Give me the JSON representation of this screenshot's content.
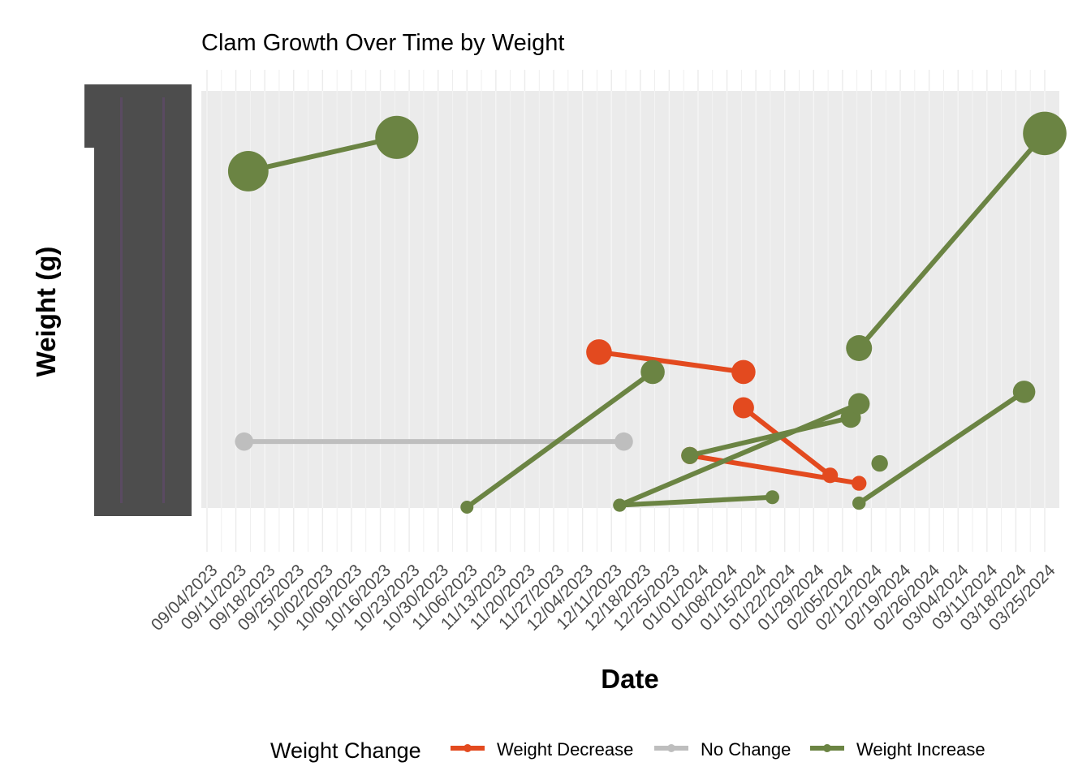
{
  "chart_data": {
    "type": "line",
    "title": "Clam Growth Over Time by Weight",
    "xlabel": "Date",
    "ylabel": "Weight (g)",
    "xlim": [
      "2023-09-04",
      "2024-03-25"
    ],
    "ylim": [
      0,
      100
    ],
    "x_ticks": [
      "09/04/2023",
      "09/11/2023",
      "09/18/2023",
      "09/25/2023",
      "10/02/2023",
      "10/09/2023",
      "10/16/2023",
      "10/23/2023",
      "10/30/2023",
      "11/06/2023",
      "11/13/2023",
      "11/20/2023",
      "11/27/2023",
      "12/04/2023",
      "12/11/2023",
      "12/18/2023",
      "12/25/2023",
      "01/01/2024",
      "01/08/2024",
      "01/15/2024",
      "01/22/2024",
      "01/29/2024",
      "02/05/2024",
      "02/12/2024",
      "02/19/2024",
      "02/26/2024",
      "03/04/2024",
      "03/11/2024",
      "03/18/2024",
      "03/25/2024"
    ],
    "grid": true,
    "legend": {
      "title": "Weight Change",
      "placement": "bottom",
      "entries": [
        {
          "label": "Weight Decrease",
          "color": "#E34A1F"
        },
        {
          "label": "No Change",
          "color": "#BEBEBE"
        },
        {
          "label": "Weight Increase",
          "color": "#6B8443"
        }
      ]
    },
    "series": [
      {
        "category": "Weight Increase",
        "points": [
          {
            "x": "2023-09-14",
            "y": 84.5
          },
          {
            "x": "2023-10-20",
            "y": 93.0
          }
        ]
      },
      {
        "category": "No Change",
        "points": [
          {
            "x": "2023-09-13",
            "y": 16.5
          },
          {
            "x": "2023-12-14",
            "y": 16.5
          }
        ]
      },
      {
        "category": "Weight Increase",
        "points": [
          {
            "x": "2023-11-06",
            "y": 0.0
          },
          {
            "x": "2023-12-21",
            "y": 34.0
          }
        ]
      },
      {
        "category": "Weight Decrease",
        "points": [
          {
            "x": "2023-12-08",
            "y": 39.0
          },
          {
            "x": "2024-01-12",
            "y": 34.0
          }
        ]
      },
      {
        "category": "Weight Decrease",
        "points": [
          {
            "x": "2023-12-30",
            "y": 13.0
          },
          {
            "x": "2024-02-09",
            "y": 6.0
          }
        ]
      },
      {
        "category": "Weight Decrease",
        "points": [
          {
            "x": "2024-01-12",
            "y": 25.0
          },
          {
            "x": "2024-02-02",
            "y": 8.0
          }
        ]
      },
      {
        "category": "Weight Increase",
        "points": [
          {
            "x": "2023-12-30",
            "y": 13.0
          },
          {
            "x": "2024-02-07",
            "y": 22.5
          }
        ]
      },
      {
        "category": "Weight Increase",
        "points": [
          {
            "x": "2023-12-13",
            "y": 0.5
          },
          {
            "x": "2024-02-09",
            "y": 26.0
          }
        ]
      },
      {
        "category": "Weight Increase",
        "points": [
          {
            "x": "2023-12-13",
            "y": 0.5
          },
          {
            "x": "2024-01-19",
            "y": 2.5
          }
        ]
      },
      {
        "category": "Weight Increase",
        "points": [
          {
            "x": "2024-02-14",
            "y": 11.0
          }
        ]
      },
      {
        "category": "Weight Increase",
        "points": [
          {
            "x": "2024-02-09",
            "y": 40.0
          },
          {
            "x": "2024-03-25",
            "y": 94.0
          }
        ]
      },
      {
        "category": "Weight Increase",
        "points": [
          {
            "x": "2024-02-09",
            "y": 1.0
          },
          {
            "x": "2024-03-20",
            "y": 29.0
          }
        ]
      }
    ]
  }
}
